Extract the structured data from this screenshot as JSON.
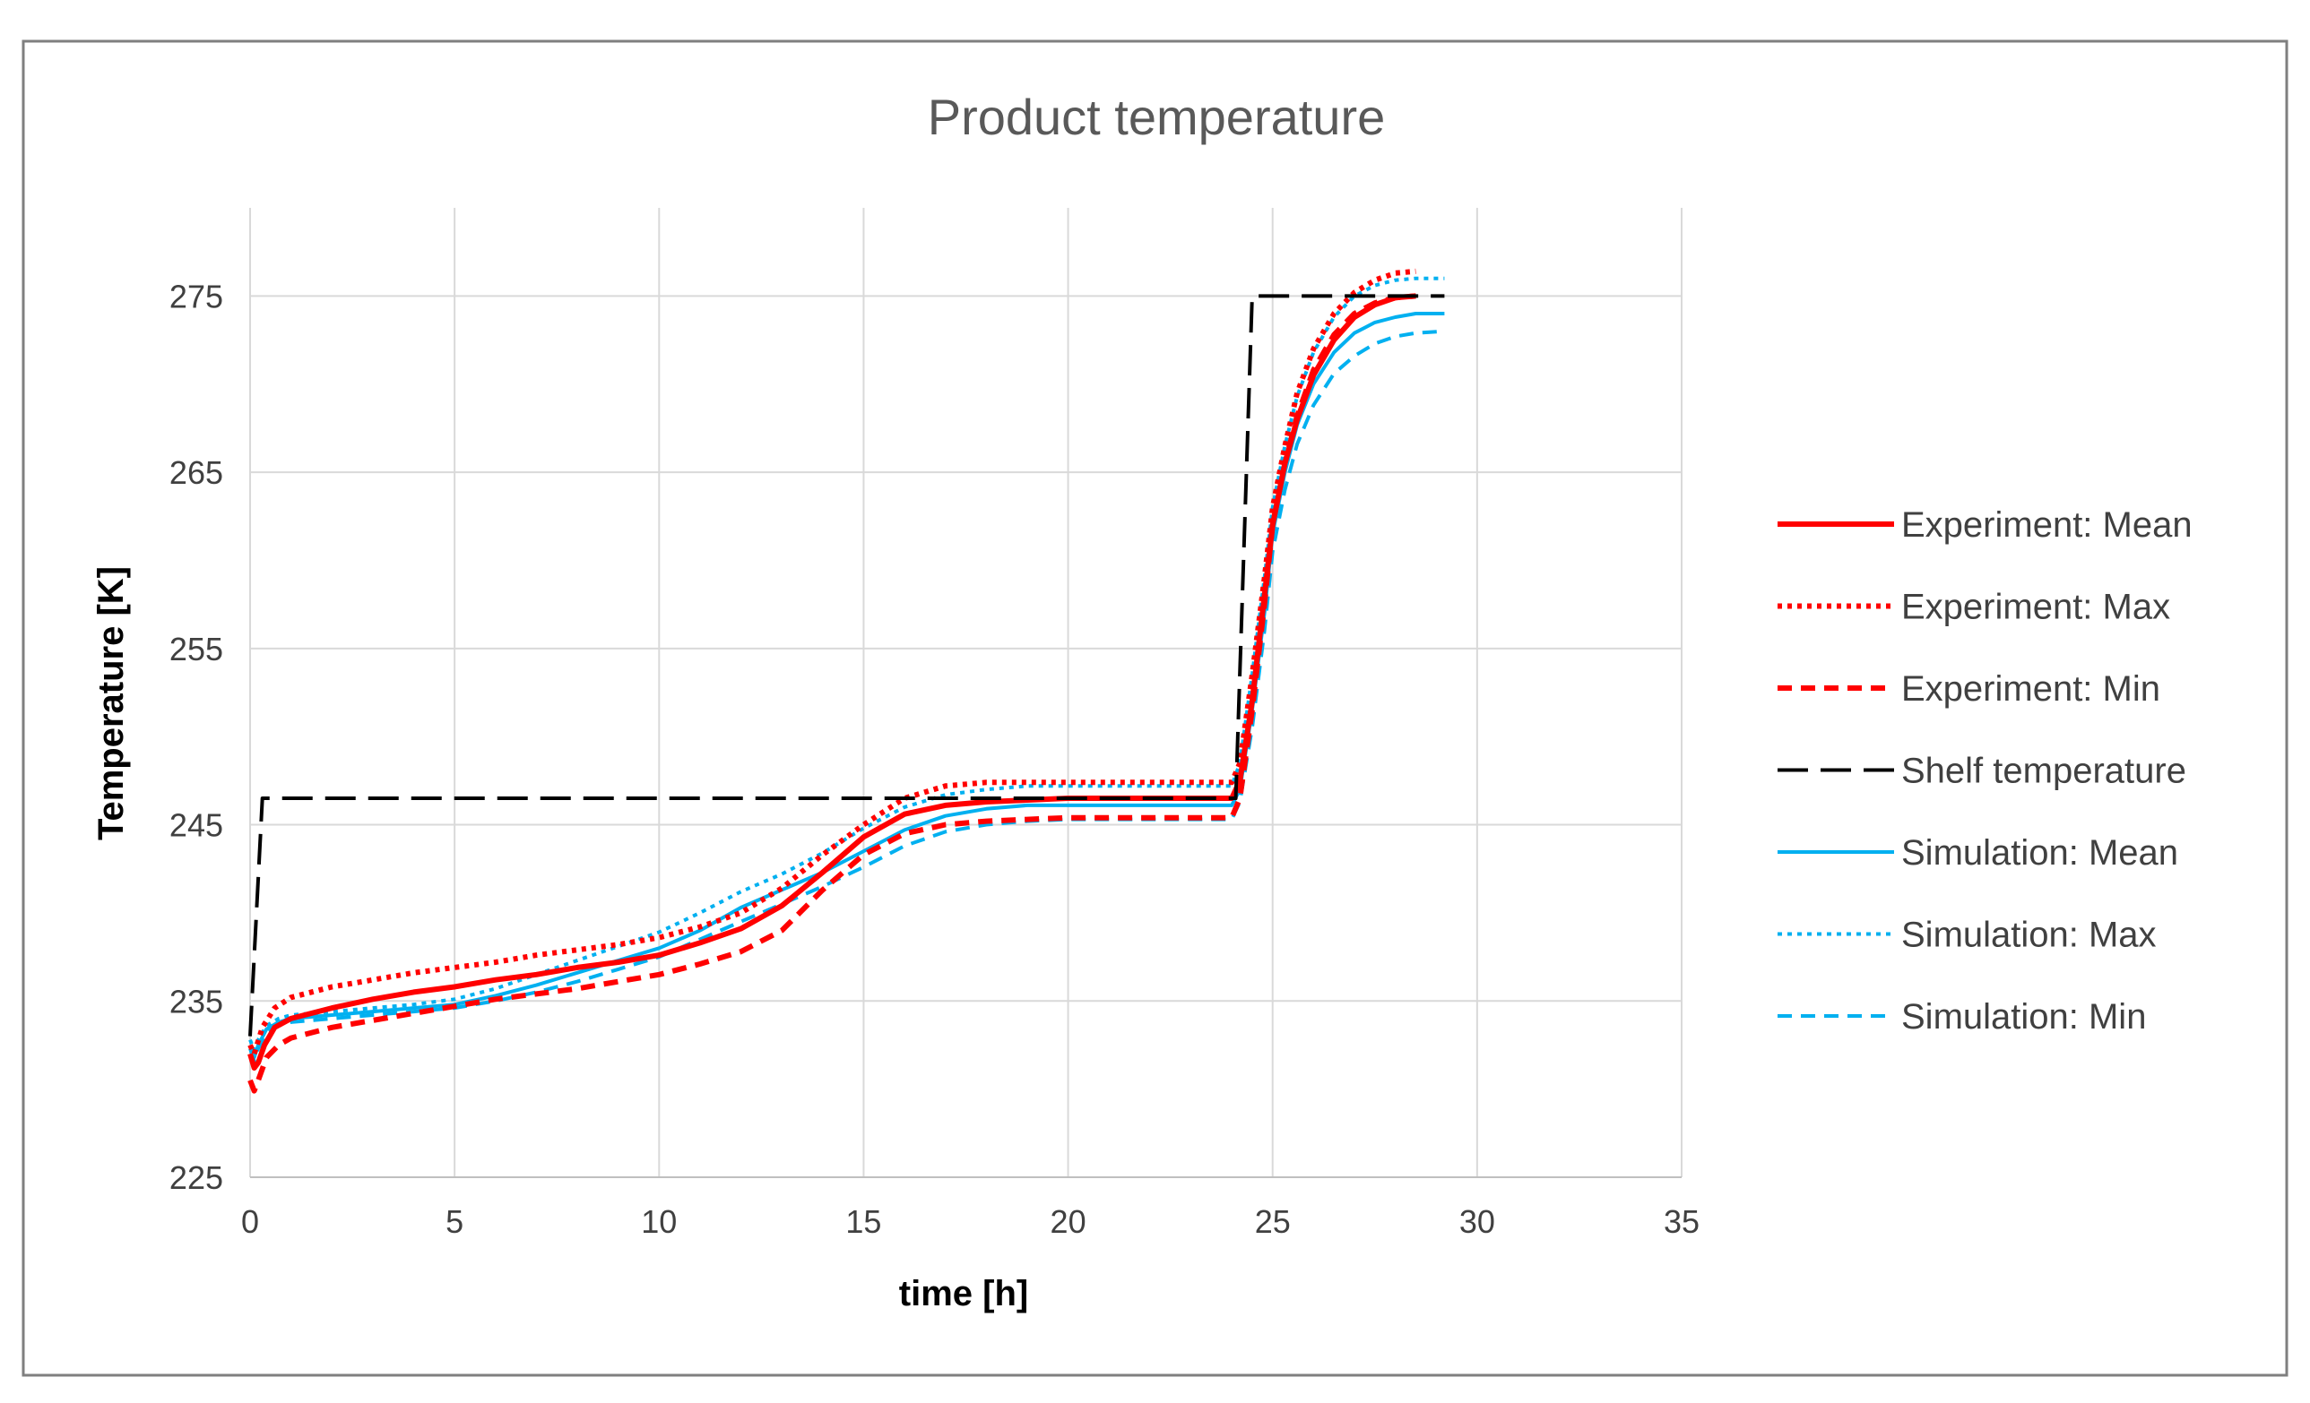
{
  "chart_data": {
    "type": "line",
    "title": "Product temperature",
    "xlabel": "time [h]",
    "ylabel": "Temperature [K]",
    "xlim": [
      0,
      35
    ],
    "ylim": [
      225,
      280
    ],
    "xticks": [
      0,
      5,
      10,
      15,
      20,
      25,
      30,
      35
    ],
    "yticks": [
      225,
      235,
      245,
      255,
      265,
      275
    ],
    "grid": true,
    "legend_position": "right",
    "series": [
      {
        "name": "Experiment: Mean",
        "color": "#FF0000",
        "style": "solid",
        "x": [
          0,
          0.1,
          0.2,
          0.35,
          0.6,
          1,
          2,
          3,
          4,
          5,
          6,
          7,
          8,
          9,
          10,
          11,
          12,
          13,
          14,
          15,
          16,
          17,
          18,
          19,
          20,
          21,
          22,
          23,
          24,
          24.2,
          24.5,
          24.8,
          25,
          25.3,
          25.6,
          26,
          26.5,
          27,
          27.5,
          28,
          28.5
        ],
        "y": [
          232,
          231.2,
          231.5,
          232.5,
          233.5,
          234,
          234.6,
          235.1,
          235.5,
          235.8,
          236.2,
          236.5,
          236.9,
          237.2,
          237.6,
          238.3,
          239.1,
          240.4,
          242.3,
          244.3,
          245.6,
          246.1,
          246.3,
          246.4,
          246.5,
          246.5,
          246.5,
          246.5,
          246.5,
          247.5,
          252,
          258,
          262,
          265.5,
          268,
          270.5,
          272.5,
          273.8,
          274.5,
          274.9,
          275
        ]
      },
      {
        "name": "Experiment: Max",
        "color": "#FF0000",
        "style": "dotted",
        "x": [
          0,
          0.1,
          0.3,
          0.6,
          1,
          2,
          3,
          4,
          5,
          6,
          7,
          8,
          9,
          10,
          11,
          12,
          13,
          14,
          15,
          16,
          17,
          18,
          19,
          20,
          21,
          22,
          23,
          24,
          24.2,
          24.5,
          24.8,
          25,
          25.3,
          25.6,
          26,
          26.5,
          27,
          27.5,
          28,
          28.5
        ],
        "y": [
          232.5,
          232,
          233.5,
          234.6,
          235.2,
          235.8,
          236.2,
          236.6,
          236.9,
          237.2,
          237.6,
          237.9,
          238.2,
          238.6,
          239.2,
          240,
          241.4,
          243.3,
          245,
          246.5,
          247.2,
          247.4,
          247.4,
          247.4,
          247.4,
          247.4,
          247.4,
          247.4,
          248.5,
          253.5,
          259,
          263,
          266.5,
          269.5,
          272,
          274,
          275.2,
          275.9,
          276.3,
          276.4
        ]
      },
      {
        "name": "Experiment: Min",
        "color": "#FF0000",
        "style": "dashed",
        "x": [
          0,
          0.1,
          0.2,
          0.4,
          0.7,
          1,
          2,
          3,
          4,
          5,
          6,
          7,
          8,
          9,
          10,
          11,
          12,
          13,
          14,
          15,
          16,
          17,
          18,
          19,
          20,
          21,
          22,
          23,
          24,
          24.2,
          24.5,
          24.8,
          25,
          25.3,
          25.6,
          26,
          26.5,
          27,
          27.5,
          28,
          28.5
        ],
        "y": [
          230.5,
          229.9,
          230.5,
          231.8,
          232.5,
          232.9,
          233.5,
          233.9,
          234.3,
          234.7,
          235.1,
          235.4,
          235.7,
          236.1,
          236.5,
          237.1,
          237.8,
          239,
          241.3,
          243.3,
          244.5,
          245,
          245.2,
          245.3,
          245.4,
          245.4,
          245.4,
          245.4,
          245.4,
          246.5,
          251.5,
          257.5,
          262,
          265.5,
          268.2,
          270.8,
          272.8,
          274,
          274.6,
          274.9,
          275
        ]
      },
      {
        "name": "Shelf temperature",
        "color": "#000000",
        "style": "longdash",
        "x": [
          0,
          0.3,
          5,
          10,
          15,
          20,
          24.1,
          24.5,
          29.2
        ],
        "y": [
          233,
          246.5,
          246.5,
          246.5,
          246.5,
          246.5,
          246.5,
          275,
          275
        ]
      },
      {
        "name": "Simulation: Mean",
        "color": "#00B0F0",
        "style": "solid",
        "x": [
          0,
          0.1,
          0.2,
          0.4,
          0.7,
          1,
          2,
          3,
          4,
          5,
          6,
          7,
          8,
          9,
          10,
          11,
          12,
          13,
          14,
          15,
          16,
          17,
          18,
          19,
          20,
          21,
          22,
          23,
          24,
          24.2,
          24.5,
          24.8,
          25,
          25.3,
          25.6,
          26,
          26.5,
          27,
          27.5,
          28,
          28.5,
          29.2
        ],
        "y": [
          232.5,
          231.8,
          232.5,
          233.4,
          233.8,
          234,
          234.2,
          234.4,
          234.6,
          234.8,
          235.3,
          235.9,
          236.6,
          237.3,
          238,
          239,
          240.3,
          241.3,
          242.3,
          243.5,
          244.7,
          245.5,
          245.9,
          246.1,
          246.1,
          246.1,
          246.1,
          246.1,
          246.1,
          247,
          251.5,
          257,
          261.5,
          265,
          267.7,
          270,
          271.8,
          272.9,
          273.5,
          273.8,
          274,
          274
        ]
      },
      {
        "name": "Simulation: Max",
        "color": "#00B0F0",
        "style": "dotted",
        "x": [
          0,
          0.1,
          0.2,
          0.4,
          0.7,
          1,
          2,
          3,
          4,
          5,
          6,
          7,
          8,
          9,
          10,
          11,
          12,
          13,
          14,
          15,
          16,
          17,
          18,
          19,
          20,
          21,
          22,
          23,
          24,
          24.2,
          24.5,
          24.8,
          25,
          25.3,
          25.6,
          26,
          26.5,
          27,
          27.5,
          28,
          28.5,
          29.2
        ],
        "y": [
          232.8,
          232.2,
          232.8,
          233.6,
          234,
          234.2,
          234.4,
          234.6,
          234.8,
          235.1,
          235.7,
          236.5,
          237.3,
          238.1,
          238.9,
          240,
          241.2,
          242.2,
          243.4,
          244.8,
          246,
          246.7,
          247,
          247.2,
          247.2,
          247.2,
          247.2,
          247.2,
          247.2,
          248.5,
          253.5,
          259,
          263,
          266.5,
          269.3,
          271.8,
          273.8,
          275,
          275.6,
          275.9,
          276,
          276
        ]
      },
      {
        "name": "Simulation: Min",
        "color": "#00B0F0",
        "style": "dashed",
        "x": [
          0,
          0.1,
          0.2,
          0.4,
          0.7,
          1,
          2,
          3,
          4,
          5,
          6,
          7,
          8,
          9,
          10,
          11,
          12,
          13,
          14,
          15,
          16,
          17,
          18,
          19,
          20,
          21,
          22,
          23,
          24,
          24.2,
          24.5,
          24.8,
          25,
          25.3,
          25.6,
          26,
          26.5,
          27,
          27.5,
          28,
          28.5,
          29.2
        ],
        "y": [
          232.3,
          231.6,
          232.3,
          233.2,
          233.6,
          233.8,
          234,
          234.2,
          234.4,
          234.6,
          235,
          235.5,
          236.1,
          236.8,
          237.5,
          238.5,
          239.5,
          240.5,
          241.5,
          242.6,
          243.8,
          244.6,
          245,
          245.2,
          245.3,
          245.3,
          245.3,
          245.3,
          245.3,
          246.3,
          250.5,
          256,
          260.5,
          264,
          266.6,
          268.8,
          270.6,
          271.6,
          272.3,
          272.7,
          272.9,
          273
        ]
      }
    ]
  }
}
